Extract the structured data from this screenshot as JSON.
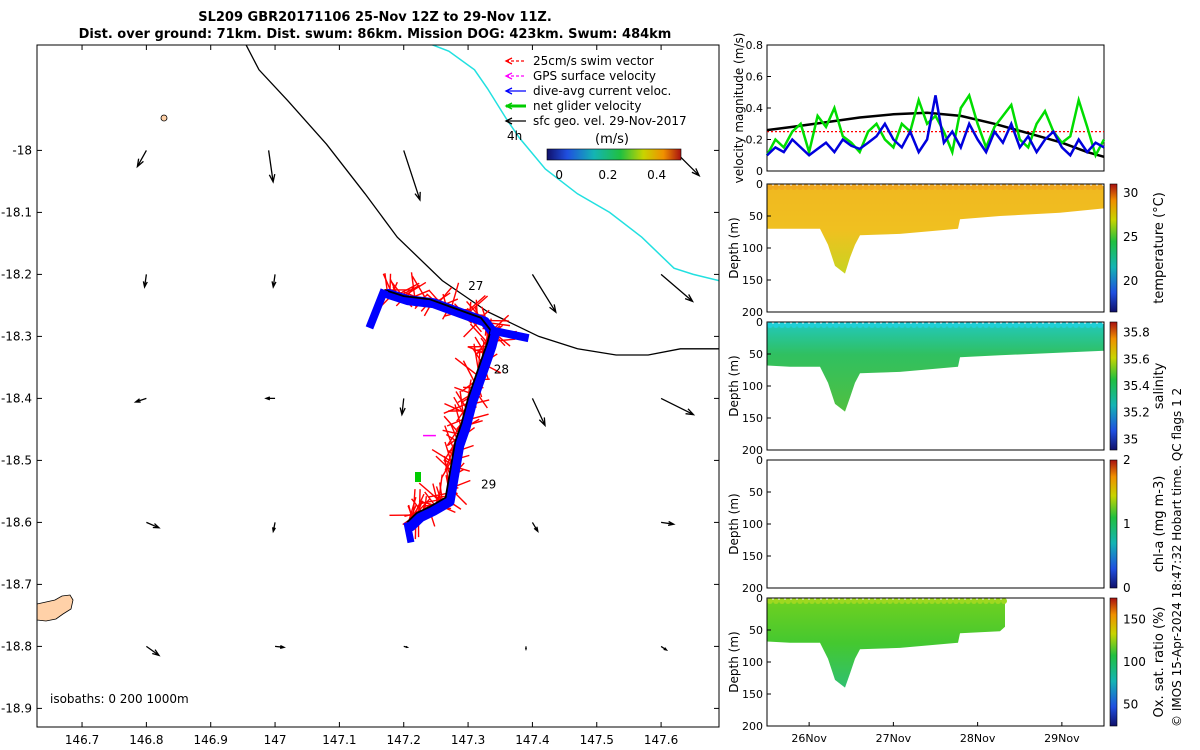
{
  "title_line1": "SL209 GBR20171106 25-Nov 12Z to 29-Nov 11Z.",
  "title_line2": "Dist. over ground: 71km. Dist. swum: 86km. Mission DOG: 423km. Swum: 484km",
  "copyright": "© IMOS 15-Apr-2024 18:47:32 Hobart time. QC flags 1  2",
  "colors": {
    "swim": "#ff0000",
    "gps": "#ff00ff",
    "current": "#0000ff",
    "net": "#00cc00",
    "geo": "#000000",
    "coast": "#ffd1a8",
    "track_line": "#000000",
    "cyan_line": "#22e0e0"
  },
  "chart_data": [
    {
      "type": "scatter",
      "panel": "map",
      "xlim": [
        146.63,
        147.69
      ],
      "ylim": [
        -18.93,
        -17.83
      ],
      "xticks": [
        "146.7",
        "146.8",
        "146.9",
        "147",
        "147.1",
        "147.2",
        "147.3",
        "147.4",
        "147.5",
        "147.6"
      ],
      "xtick_values": [
        146.7,
        146.8,
        146.9,
        147.0,
        147.1,
        147.2,
        147.3,
        147.4,
        147.5,
        147.6
      ],
      "yticks": [
        "-18",
        "-18.1",
        "-18.2",
        "-18.3",
        "-18.4",
        "-18.5",
        "-18.6",
        "-18.7",
        "-18.8",
        "-18.9"
      ],
      "ytick_values": [
        -18,
        -18.1,
        -18.2,
        -18.3,
        -18.4,
        -18.5,
        -18.6,
        -18.7,
        -18.8,
        -18.9
      ],
      "legend": [
        "25cm/s swim vector",
        "GPS surface velocity",
        "dive-avg current veloc.",
        "net glider velocity",
        "sfc geo. vel. 29-Nov-2017"
      ],
      "legend_extra": "4h",
      "colorbar_label": "(m/s)",
      "colorbar_ticks": [
        "0",
        "0.2",
        "0.4"
      ],
      "colorbar_range": [
        -0.05,
        0.5
      ],
      "isobaths_label": "isobaths: 0   200  1000m",
      "day_labels": [
        {
          "text": "27",
          "lon": 147.3,
          "lat": -18.225
        },
        {
          "text": "28",
          "lon": 147.34,
          "lat": -18.36
        },
        {
          "text": "29",
          "lon": 147.32,
          "lat": -18.545
        }
      ],
      "glider_track": [
        [
          147.17,
          -18.225
        ],
        [
          147.2,
          -18.235
        ],
        [
          147.24,
          -18.24
        ],
        [
          147.28,
          -18.255
        ],
        [
          147.32,
          -18.27
        ],
        [
          147.335,
          -18.29
        ],
        [
          147.33,
          -18.31
        ],
        [
          147.32,
          -18.34
        ],
        [
          147.31,
          -18.37
        ],
        [
          147.3,
          -18.4
        ],
        [
          147.29,
          -18.44
        ],
        [
          147.28,
          -18.47
        ],
        [
          147.275,
          -18.5
        ],
        [
          147.27,
          -18.53
        ],
        [
          147.265,
          -18.56
        ],
        [
          147.24,
          -18.575
        ],
        [
          147.22,
          -18.585
        ],
        [
          147.205,
          -18.6
        ]
      ],
      "bathy_line_black": [
        [
          146.95,
          -17.82
        ],
        [
          146.975,
          -17.87
        ],
        [
          147.02,
          -17.92
        ],
        [
          147.08,
          -17.99
        ],
        [
          147.14,
          -18.07
        ],
        [
          147.19,
          -18.14
        ],
        [
          147.26,
          -18.21
        ],
        [
          147.33,
          -18.26
        ],
        [
          147.41,
          -18.3
        ],
        [
          147.47,
          -18.32
        ],
        [
          147.53,
          -18.33
        ],
        [
          147.58,
          -18.33
        ],
        [
          147.63,
          -18.32
        ],
        [
          147.69,
          -18.32
        ]
      ],
      "bathy_line_cyan": [
        [
          147.22,
          -17.82
        ],
        [
          147.27,
          -17.84
        ],
        [
          147.31,
          -17.87
        ],
        [
          147.33,
          -17.9
        ],
        [
          147.36,
          -17.95
        ],
        [
          147.38,
          -17.98
        ],
        [
          147.42,
          -18.03
        ],
        [
          147.47,
          -18.07
        ],
        [
          147.52,
          -18.1
        ],
        [
          147.57,
          -18.14
        ],
        [
          147.62,
          -18.19
        ],
        [
          147.65,
          -18.2
        ],
        [
          147.69,
          -18.21
        ]
      ],
      "geo_vectors": [
        {
          "lon": 146.8,
          "lat": -18.0,
          "u": -0.1,
          "v": -0.18
        },
        {
          "lon": 146.99,
          "lat": -18.0,
          "u": 0.05,
          "v": -0.35
        },
        {
          "lon": 147.2,
          "lat": -18.0,
          "u": 0.18,
          "v": -0.55
        },
        {
          "lon": 147.62,
          "lat": -18.0,
          "u": 0.28,
          "v": -0.28
        },
        {
          "lon": 146.8,
          "lat": -18.2,
          "u": -0.02,
          "v": -0.14
        },
        {
          "lon": 147.0,
          "lat": -18.2,
          "u": -0.02,
          "v": -0.14
        },
        {
          "lon": 147.4,
          "lat": -18.2,
          "u": 0.26,
          "v": -0.42
        },
        {
          "lon": 147.6,
          "lat": -18.2,
          "u": 0.35,
          "v": -0.3
        },
        {
          "lon": 146.8,
          "lat": -18.4,
          "u": -0.12,
          "v": -0.04
        },
        {
          "lon": 147.0,
          "lat": -18.4,
          "u": -0.1,
          "v": 0.0
        },
        {
          "lon": 147.2,
          "lat": -18.4,
          "u": -0.02,
          "v": -0.18
        },
        {
          "lon": 147.4,
          "lat": -18.4,
          "u": 0.14,
          "v": -0.3
        },
        {
          "lon": 147.6,
          "lat": -18.4,
          "u": 0.36,
          "v": -0.18
        },
        {
          "lon": 146.8,
          "lat": -18.6,
          "u": 0.14,
          "v": -0.06
        },
        {
          "lon": 147.0,
          "lat": -18.6,
          "u": -0.02,
          "v": -0.1
        },
        {
          "lon": 147.4,
          "lat": -18.6,
          "u": 0.06,
          "v": -0.1
        },
        {
          "lon": 147.6,
          "lat": -18.6,
          "u": 0.14,
          "v": -0.02
        },
        {
          "lon": 146.8,
          "lat": -18.8,
          "u": 0.14,
          "v": -0.1
        },
        {
          "lon": 147.0,
          "lat": -18.8,
          "u": 0.1,
          "v": -0.01
        },
        {
          "lon": 147.2,
          "lat": -18.8,
          "u": 0.04,
          "v": -0.01
        },
        {
          "lon": 147.39,
          "lat": -18.8,
          "u": 0.0,
          "v": -0.03
        },
        {
          "lon": 147.6,
          "lat": -18.8,
          "u": 0.06,
          "v": -0.04
        }
      ]
    },
    {
      "type": "line",
      "panel": "velocity",
      "ylabel": "velocity magnitude (m/s)",
      "ylim": [
        0,
        0.8
      ],
      "yticks": [
        "0",
        "0.2",
        "0.4",
        "0.6",
        "0.8"
      ],
      "xlim": [
        25.5,
        29.5
      ],
      "reference_value": 0.25,
      "series": [
        {
          "color": "#000000",
          "x": [
            25.5,
            25.8,
            26.2,
            26.6,
            27.0,
            27.4,
            27.8,
            28.2,
            28.6,
            29.0,
            29.3,
            29.5
          ],
          "values": [
            0.26,
            0.28,
            0.31,
            0.34,
            0.36,
            0.37,
            0.35,
            0.3,
            0.24,
            0.18,
            0.12,
            0.09
          ]
        },
        {
          "color": "#00dd00",
          "x": [
            25.5,
            25.6,
            25.7,
            25.8,
            25.9,
            26.0,
            26.1,
            26.2,
            26.3,
            26.4,
            26.5,
            26.6,
            26.7,
            26.8,
            26.9,
            27.0,
            27.1,
            27.2,
            27.3,
            27.4,
            27.5,
            27.6,
            27.7,
            27.8,
            27.9,
            28.0,
            28.1,
            28.2,
            28.3,
            28.4,
            28.5,
            28.6,
            28.7,
            28.8,
            28.9,
            29.0,
            29.1,
            29.2,
            29.3,
            29.4,
            29.5
          ],
          "values": [
            0.1,
            0.2,
            0.15,
            0.25,
            0.3,
            0.12,
            0.35,
            0.28,
            0.4,
            0.22,
            0.18,
            0.12,
            0.25,
            0.3,
            0.2,
            0.15,
            0.3,
            0.25,
            0.45,
            0.3,
            0.35,
            0.25,
            0.12,
            0.4,
            0.48,
            0.3,
            0.15,
            0.28,
            0.35,
            0.42,
            0.2,
            0.15,
            0.3,
            0.38,
            0.25,
            0.18,
            0.22,
            0.45,
            0.28,
            0.1,
            0.2
          ]
        },
        {
          "color": "#0000dd",
          "x": [
            25.5,
            25.6,
            25.7,
            25.8,
            25.9,
            26.0,
            26.1,
            26.2,
            26.3,
            26.4,
            26.5,
            26.6,
            26.7,
            26.8,
            26.9,
            27.0,
            27.1,
            27.2,
            27.3,
            27.4,
            27.5,
            27.6,
            27.7,
            27.8,
            27.9,
            28.0,
            28.1,
            28.2,
            28.3,
            28.4,
            28.5,
            28.6,
            28.7,
            28.8,
            28.9,
            29.0,
            29.1,
            29.2,
            29.3,
            29.4,
            29.5
          ],
          "values": [
            0.1,
            0.15,
            0.12,
            0.2,
            0.15,
            0.1,
            0.14,
            0.18,
            0.12,
            0.2,
            0.16,
            0.14,
            0.18,
            0.22,
            0.3,
            0.2,
            0.15,
            0.25,
            0.12,
            0.2,
            0.48,
            0.18,
            0.25,
            0.15,
            0.3,
            0.2,
            0.12,
            0.25,
            0.18,
            0.3,
            0.15,
            0.22,
            0.12,
            0.2,
            0.25,
            0.15,
            0.1,
            0.2,
            0.12,
            0.18,
            0.15
          ]
        }
      ]
    },
    {
      "type": "heatmap",
      "panel": "temperature",
      "ylabel": "Depth (m)",
      "colorbar_label": "temperature (°C)",
      "colorbar_ticks": [
        "20",
        "25",
        "30"
      ],
      "colorbar_range": [
        16.5,
        31
      ],
      "ylim": [
        0,
        200
      ],
      "yticks": [
        "0",
        "50",
        "100",
        "150",
        "200"
      ]
    },
    {
      "type": "heatmap",
      "panel": "salinity",
      "ylabel": "Depth (m)",
      "colorbar_label": "salinity",
      "colorbar_ticks": [
        "35",
        "35.2",
        "35.4",
        "35.6",
        "35.8"
      ],
      "colorbar_range": [
        34.92,
        35.88
      ],
      "ylim": [
        0,
        200
      ],
      "yticks": [
        "0",
        "50",
        "100",
        "150",
        "200"
      ]
    },
    {
      "type": "heatmap",
      "panel": "chl-a",
      "ylabel": "Depth (m)",
      "colorbar_label": "chl-a (mg m-3)",
      "colorbar_ticks": [
        "0",
        "1",
        "2"
      ],
      "colorbar_range": [
        0,
        2
      ],
      "ylim": [
        0,
        200
      ],
      "yticks": [
        "0",
        "50",
        "100",
        "150",
        "200"
      ]
    },
    {
      "type": "heatmap",
      "panel": "oxygen",
      "ylabel": "Depth (m)",
      "colorbar_label": "Ox. sat. ratio (%)",
      "colorbar_ticks": [
        "50",
        "100",
        "150"
      ],
      "colorbar_range": [
        25,
        175
      ],
      "ylim": [
        0,
        200
      ],
      "yticks": [
        "0",
        "50",
        "100",
        "150",
        "200"
      ],
      "xticks": [
        "26Nov",
        "27Nov",
        "28Nov",
        "29Nov"
      ],
      "xtick_values": [
        26,
        27,
        28,
        29
      ]
    }
  ]
}
